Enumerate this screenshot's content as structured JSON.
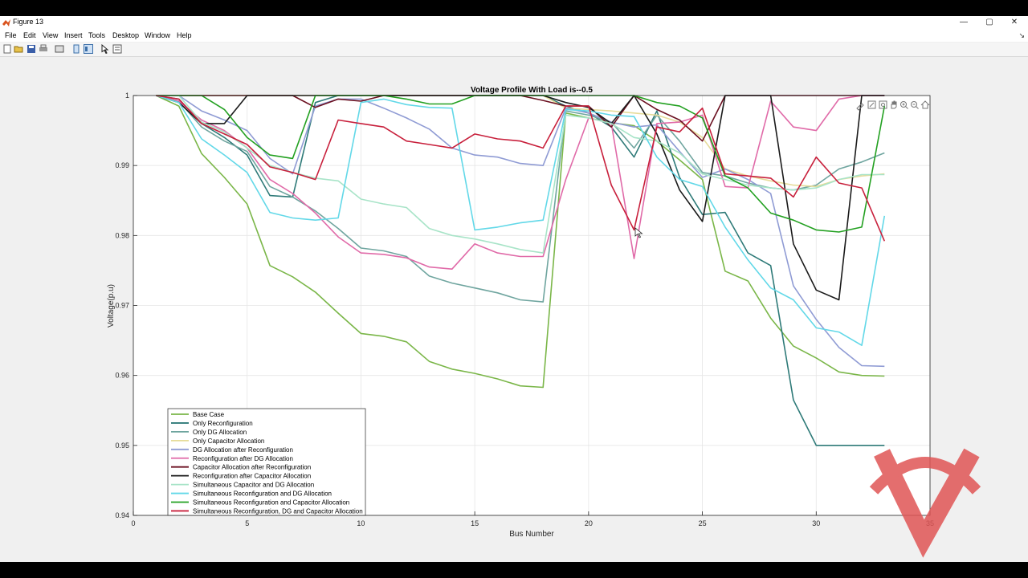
{
  "window": {
    "title": "Figure 13",
    "controls": {
      "minimize": "—",
      "maximize": "▢",
      "close": "✕"
    }
  },
  "menu": {
    "items": [
      "File",
      "Edit",
      "View",
      "Insert",
      "Tools",
      "Desktop",
      "Window",
      "Help"
    ],
    "dock_glyph": "↘"
  },
  "toolbar": {
    "icons": [
      "new-figure-icon",
      "open-file-icon",
      "save-icon",
      "print-icon",
      "link-plot-icon",
      "hide-plot-tools-icon",
      "show-plot-tools-icon",
      "edit-plot-icon",
      "property-inspector-icon"
    ]
  },
  "axes_toolbar": {
    "icons": [
      "brush-icon",
      "data-tips-icon",
      "rotate-icon",
      "pan-icon",
      "zoom-in-icon",
      "zoom-out-icon",
      "home-icon"
    ]
  },
  "colors": {
    "window_bg": "#f0f0f0",
    "axes_bg": "#ffffff",
    "grid": "#e6e6e6",
    "watermark": "#e05555"
  },
  "chart_data": {
    "type": "line",
    "title": "Voltage Profile With Load is--0.5",
    "xlabel": "Bus Number",
    "ylabel": "Voltage(p.u)",
    "xlim": [
      0,
      35
    ],
    "ylim": [
      0.94,
      1.0
    ],
    "xticks": [
      0,
      5,
      10,
      15,
      20,
      25,
      30,
      35
    ],
    "yticks": [
      0.94,
      0.95,
      0.96,
      0.97,
      0.98,
      0.99,
      1
    ],
    "yticklabels": [
      "0.94",
      "0.95",
      "0.96",
      "0.97",
      "0.98",
      "0.99",
      "1"
    ],
    "grid": true,
    "legend_position": "bottom-left",
    "x": [
      1,
      2,
      3,
      4,
      5,
      6,
      7,
      8,
      9,
      10,
      11,
      12,
      13,
      14,
      15,
      16,
      17,
      18,
      19,
      20,
      21,
      22,
      23,
      24,
      25,
      26,
      27,
      28,
      29,
      30,
      31,
      32,
      33
    ],
    "series": [
      {
        "name": "Base Case",
        "color": "#7ab648",
        "values": [
          1.0,
          0.9985,
          0.9917,
          0.9883,
          0.9845,
          0.9757,
          0.9741,
          0.9719,
          0.9689,
          0.966,
          0.9656,
          0.9648,
          0.962,
          0.9609,
          0.9603,
          0.9595,
          0.9585,
          0.9583,
          0.9975,
          0.9968,
          0.9961,
          0.9957,
          0.9935,
          0.9908,
          0.988,
          0.9749,
          0.9735,
          0.9682,
          0.9642,
          0.9625,
          0.9605,
          0.96,
          0.9599
        ]
      },
      {
        "name": "Only Reconfiguration",
        "color": "#2e7a78",
        "values": [
          1.0,
          0.9995,
          0.996,
          0.994,
          0.9915,
          0.9857,
          0.9855,
          0.999,
          1.0,
          1.0,
          1.0,
          1.0,
          1.0,
          1.0,
          1.0,
          1.0,
          1.0,
          1.0,
          0.9985,
          0.9975,
          0.9955,
          0.9912,
          0.9978,
          0.9883,
          0.983,
          0.9833,
          0.9775,
          0.9757,
          0.9565,
          0.95,
          0.95,
          0.95,
          0.95
        ]
      },
      {
        "name": "Only DG Allocation",
        "color": "#6fa59f",
        "values": [
          1.0,
          0.9992,
          0.9955,
          0.9935,
          0.992,
          0.987,
          0.9855,
          0.9835,
          0.981,
          0.9782,
          0.9778,
          0.977,
          0.9742,
          0.9732,
          0.9725,
          0.9718,
          0.9708,
          0.9705,
          0.9978,
          0.9972,
          0.9962,
          0.9925,
          0.9972,
          0.9935,
          0.989,
          0.9885,
          0.9875,
          0.9868,
          0.9865,
          0.9872,
          0.9895,
          0.9905,
          0.9918
        ]
      },
      {
        "name": "Only Capacitor Allocation",
        "color": "#e6dc9a",
        "values": [
          1.0,
          1.0,
          1.0,
          1.0,
          1.0,
          1.0,
          1.0,
          1.0,
          1.0,
          1.0,
          1.0,
          1.0,
          1.0,
          1.0,
          1.0,
          1.0,
          1.0,
          1.0,
          0.9982,
          0.998,
          0.9978,
          0.9975,
          0.9972,
          0.9962,
          0.994,
          0.9895,
          0.9885,
          0.9878,
          0.9872,
          0.987,
          0.988,
          0.9885,
          0.9888
        ]
      },
      {
        "name": "DG Allocation after Reconfiguration",
        "color": "#8f9bd4",
        "values": [
          1.0,
          1.0,
          0.9978,
          0.9965,
          0.995,
          0.991,
          0.9888,
          0.9985,
          0.9995,
          0.9995,
          0.9982,
          0.9968,
          0.9952,
          0.9925,
          0.9915,
          0.9912,
          0.9903,
          0.99,
          0.9982,
          0.9975,
          0.9962,
          0.9955,
          0.9958,
          0.992,
          0.9883,
          0.9895,
          0.988,
          0.986,
          0.9728,
          0.968,
          0.964,
          0.9614,
          0.9613
        ]
      },
      {
        "name": "Reconfiguration after DG Allocation",
        "color": "#e06aa8",
        "values": [
          1.0,
          0.9992,
          0.9965,
          0.995,
          0.9925,
          0.988,
          0.986,
          0.9832,
          0.9798,
          0.9775,
          0.9773,
          0.9768,
          0.9755,
          0.9752,
          0.9788,
          0.9775,
          0.977,
          0.977,
          0.988,
          0.9968,
          0.996,
          0.9767,
          0.996,
          0.9962,
          0.9972,
          0.987,
          0.9868,
          0.9992,
          0.9955,
          0.995,
          0.9995,
          1.0,
          1.0
        ]
      },
      {
        "name": "Capacitor Allocation after Reconfiguration",
        "color": "#6b1020",
        "values": [
          1.0,
          1.0,
          1.0,
          1.0,
          1.0,
          1.0,
          1.0,
          0.9983,
          0.9995,
          0.9992,
          1.0,
          1.0,
          1.0,
          1.0,
          1.0,
          1.0,
          1.0,
          0.9993,
          0.9985,
          0.9985,
          0.9955,
          1.0,
          0.998,
          0.9965,
          0.9935,
          1.0,
          1.0,
          1.0,
          1.0,
          1.0,
          1.0,
          1.0,
          1.0
        ]
      },
      {
        "name": "Reconfiguration after Capacitor Allocation",
        "color": "#1a1a1a",
        "values": [
          1.0,
          0.999,
          0.996,
          0.996,
          1.0,
          1.0,
          1.0,
          1.0,
          1.0,
          1.0,
          1.0,
          1.0,
          1.0,
          1.0,
          1.0,
          1.0,
          1.0,
          1.0,
          0.999,
          0.9983,
          0.996,
          1.0,
          0.9945,
          0.9865,
          0.982,
          1.0,
          1.0,
          1.0,
          0.9788,
          0.9722,
          0.9708,
          1.0,
          1.0
        ]
      },
      {
        "name": "Simultaneous Capacitor and DG Allocation",
        "color": "#a8e4c8",
        "values": [
          1.0,
          1.0,
          0.9962,
          0.9948,
          0.9925,
          0.99,
          0.989,
          0.9882,
          0.9878,
          0.9852,
          0.9845,
          0.984,
          0.981,
          0.98,
          0.9795,
          0.9788,
          0.978,
          0.9775,
          0.9972,
          0.9968,
          0.996,
          0.994,
          0.9935,
          0.9918,
          0.9888,
          0.988,
          0.9872,
          0.9868,
          0.9865,
          0.9868,
          0.988,
          0.9887,
          0.9887
        ]
      },
      {
        "name": "Simultaneous Reconfiguration and DG Allocation",
        "color": "#62d8e8",
        "values": [
          1.0,
          0.999,
          0.9938,
          0.9915,
          0.989,
          0.9833,
          0.9825,
          0.9822,
          0.9825,
          0.999,
          0.9995,
          0.9987,
          0.9983,
          0.9982,
          0.9808,
          0.9812,
          0.9818,
          0.9822,
          0.998,
          0.9978,
          0.9972,
          0.997,
          0.9912,
          0.988,
          0.987,
          0.9812,
          0.9765,
          0.9725,
          0.9708,
          0.9668,
          0.9662,
          0.9643,
          0.9828
        ]
      },
      {
        "name": "Simultaneous Reconfiguration and Capacitor Allocation",
        "color": "#22a020",
        "values": [
          1.0,
          1.0,
          1.0,
          0.998,
          0.994,
          0.9915,
          0.991,
          1.0,
          1.0,
          1.0,
          1.0,
          0.9995,
          0.9988,
          0.9988,
          1.0,
          1.0,
          1.0,
          1.0,
          1.0,
          1.0,
          1.0,
          1.0,
          0.999,
          0.9985,
          0.9968,
          0.9885,
          0.9868,
          0.9832,
          0.9822,
          0.9808,
          0.9805,
          0.9812,
          0.9985
        ]
      },
      {
        "name": "Simultaneous Reconfiguration, DG and Capacitor Allocation",
        "color": "#c8203c",
        "values": [
          1.0,
          0.9995,
          0.996,
          0.9945,
          0.993,
          0.9898,
          0.989,
          0.988,
          0.9965,
          0.996,
          0.9955,
          0.9935,
          0.993,
          0.9925,
          0.9945,
          0.9938,
          0.9935,
          0.9925,
          0.9985,
          0.9985,
          0.9872,
          0.9808,
          0.9955,
          0.9948,
          0.9982,
          0.9888,
          0.9885,
          0.9882,
          0.9855,
          0.9912,
          0.9875,
          0.9868,
          0.9792
        ]
      }
    ]
  }
}
